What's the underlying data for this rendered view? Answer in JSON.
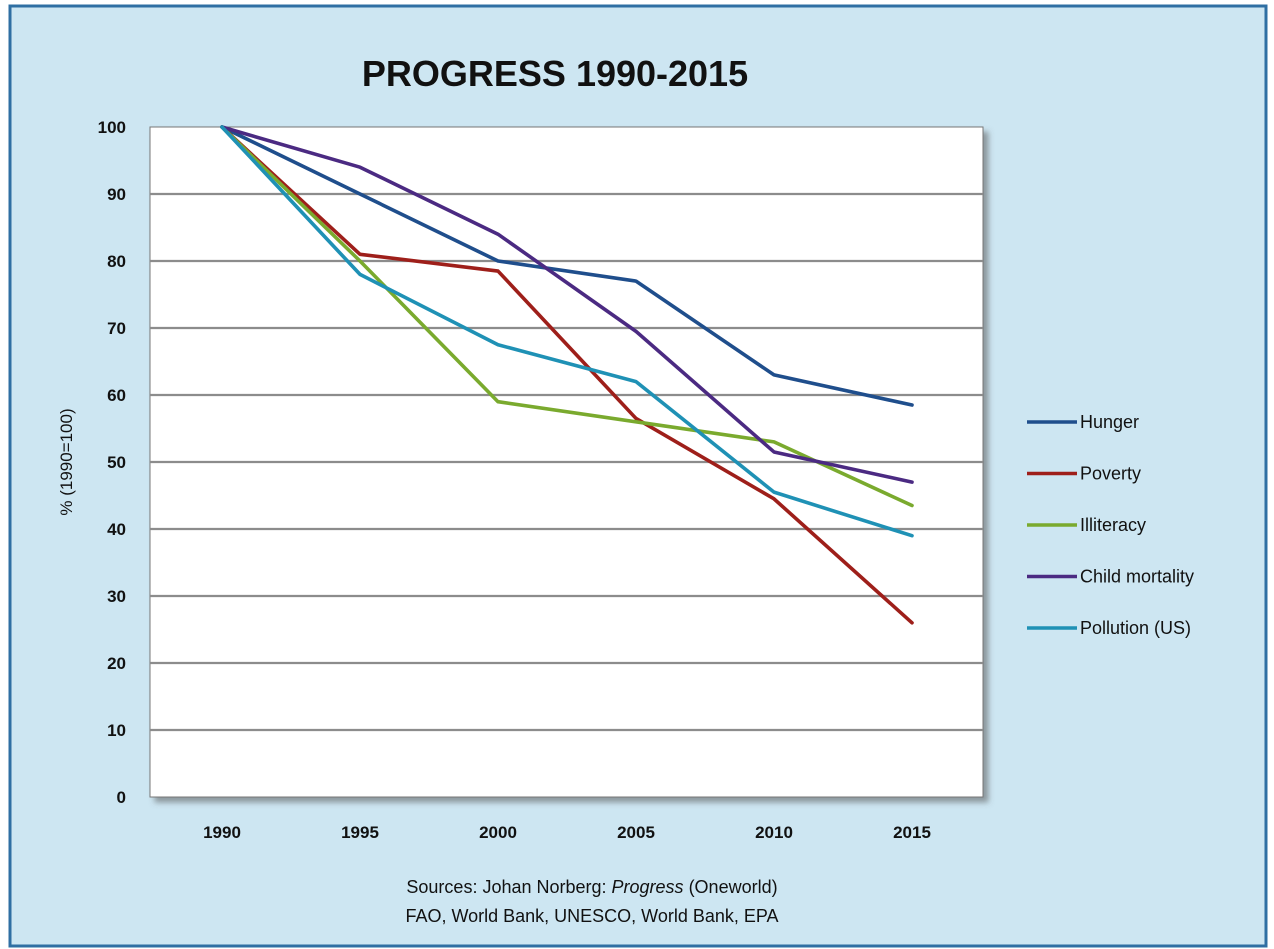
{
  "colors": {
    "frame_bg": "#cde6f2",
    "frame_border": "#2f6fa3",
    "plot_bg": "#ffffff",
    "grid": "#8c8c8c"
  },
  "sources": {
    "prefix": "Sources: Johan Norberg: ",
    "italic": "Progress",
    "suffix": " (Oneworld)",
    "line2": "FAO, World Bank, UNESCO, World Bank, EPA"
  },
  "chart_data": {
    "type": "line",
    "title": "PROGRESS 1990-2015",
    "xlabel": "",
    "ylabel": "% (1990=100)",
    "x": [
      "1990",
      "1995",
      "2000",
      "2005",
      "2010",
      "2015"
    ],
    "ylim": [
      0,
      100
    ],
    "yticks": [
      0,
      10,
      20,
      30,
      40,
      50,
      60,
      70,
      80,
      90,
      100
    ],
    "grid": true,
    "legend_position": "right",
    "series": [
      {
        "name": "Hunger",
        "color": "#1f4e8c",
        "values": [
          100,
          90,
          80,
          77,
          63,
          58.5
        ]
      },
      {
        "name": "Poverty",
        "color": "#9e1f1a",
        "values": [
          100,
          81,
          78.5,
          56.5,
          44.5,
          26
        ]
      },
      {
        "name": "Illiteracy",
        "color": "#7aaa2e",
        "values": [
          100,
          80,
          59,
          56,
          53,
          43.5
        ]
      },
      {
        "name": "Child mortality",
        "color": "#4b2a82",
        "values": [
          100,
          94,
          84,
          69.5,
          51.5,
          47
        ]
      },
      {
        "name": "Pollution (US)",
        "color": "#1f91b5",
        "values": [
          100,
          78,
          67.5,
          62,
          45.5,
          39
        ]
      }
    ]
  }
}
